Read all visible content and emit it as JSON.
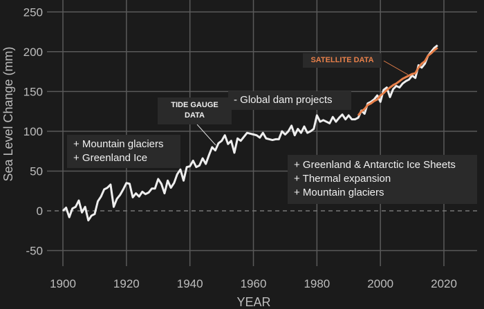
{
  "chart_data": {
    "type": "line",
    "xlabel": "YEAR",
    "ylabel": "Sea Level Change (mm)",
    "xlim": [
      1895,
      2030
    ],
    "ylim": [
      -70,
      260
    ],
    "xticks": [
      1900,
      1920,
      1940,
      1960,
      1980,
      2000,
      2020
    ],
    "yticks": [
      -50,
      0,
      50,
      100,
      150,
      200,
      250
    ],
    "grid": true,
    "colors": {
      "background": "#1b1b1b",
      "grid": "#5a5a5a",
      "tide": "#eeeeee",
      "satellite": "#e8804a"
    },
    "series": [
      {
        "key": "tide",
        "x": [
          1900,
          1901,
          1902,
          1903,
          1904,
          1905,
          1906,
          1907,
          1908,
          1909,
          1910,
          1911,
          1912,
          1913,
          1914,
          1915,
          1916,
          1917,
          1918,
          1919,
          1920,
          1921,
          1922,
          1923,
          1924,
          1925,
          1926,
          1927,
          1928,
          1929,
          1930,
          1931,
          1932,
          1933,
          1934,
          1935,
          1936,
          1937,
          1938,
          1939,
          1940,
          1941,
          1942,
          1943,
          1944,
          1945,
          1946,
          1947,
          1948,
          1949,
          1950,
          1951,
          1952,
          1953,
          1954,
          1955,
          1956,
          1957,
          1958,
          1959,
          1960,
          1961,
          1962,
          1963,
          1964,
          1965,
          1966,
          1967,
          1968,
          1969,
          1970,
          1971,
          1972,
          1973,
          1974,
          1975,
          1976,
          1977,
          1978,
          1979,
          1980,
          1981,
          1982,
          1983,
          1984,
          1985,
          1986,
          1987,
          1988,
          1989,
          1990,
          1991,
          1992,
          1993,
          1994,
          1995,
          1996,
          1997,
          1998,
          1999,
          2000,
          2001,
          2002,
          2003,
          2004,
          2005,
          2006,
          2007,
          2008,
          2009,
          2010,
          2011,
          2012,
          2013,
          2014,
          2015,
          2016,
          2017,
          2018
        ],
        "y": [
          0,
          4,
          -8,
          3,
          5,
          13,
          -2,
          5,
          -12,
          -6,
          -4,
          12,
          18,
          27,
          29,
          33,
          5,
          15,
          20,
          27,
          35,
          34,
          17,
          22,
          18,
          24,
          21,
          23,
          28,
          28,
          40,
          34,
          22,
          38,
          29,
          35,
          46,
          52,
          38,
          55,
          56,
          63,
          55,
          57,
          66,
          59,
          70,
          80,
          76,
          85,
          88,
          95,
          84,
          88,
          73,
          91,
          88,
          93,
          98,
          97,
          96,
          95,
          92,
          98,
          91,
          90,
          89,
          90,
          90,
          100,
          96,
          100,
          107,
          95,
          103,
          98,
          106,
          98,
          100,
          103,
          120,
          112,
          114,
          112,
          110,
          118,
          112,
          117,
          121,
          115,
          120,
          115,
          115,
          117,
          126,
          122,
          135,
          137,
          140,
          145,
          137,
          152,
          155,
          143,
          153,
          157,
          155,
          160,
          163,
          165,
          170,
          167,
          183,
          180,
          185,
          195,
          200,
          205,
          208
        ]
      },
      {
        "key": "satellite",
        "x": [
          1993,
          1994,
          1995,
          1996,
          1997,
          1998,
          1999,
          2000,
          2001,
          2002,
          2003,
          2004,
          2005,
          2006,
          2007,
          2008,
          2009,
          2010,
          2011,
          2012,
          2013,
          2014,
          2015,
          2016,
          2017,
          2018
        ],
        "y": [
          120,
          125,
          128,
          133,
          135,
          138,
          140,
          145,
          148,
          152,
          155,
          158,
          160,
          163,
          166,
          168,
          170,
          172,
          173,
          180,
          185,
          188,
          195,
          198,
          202,
          205
        ]
      }
    ],
    "annotations": {
      "tide_label": [
        "TIDE GAUGE",
        "DATA"
      ],
      "satellite_label": "SATELLITE DATA",
      "dams": "- Global dam projects",
      "early": [
        "+ Mountain glaciers",
        "+ Greenland Ice"
      ],
      "recent": [
        "+ Greenland & Antarctic Ice Sheets",
        "+ Thermal expansion",
        "+ Mountain glaciers"
      ]
    }
  }
}
